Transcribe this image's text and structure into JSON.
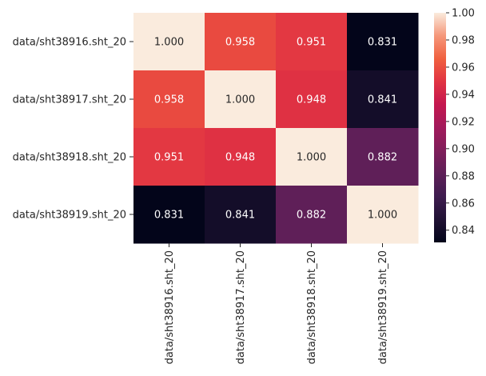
{
  "chart_data": {
    "type": "heatmap",
    "title": "",
    "xlabel": "",
    "ylabel": "",
    "row_labels": [
      "data/sht38916.sht_20",
      "data/sht38917.sht_20",
      "data/sht38918.sht_20",
      "data/sht38919.sht_20"
    ],
    "col_labels": [
      "data/sht38916.sht_20",
      "data/sht38917.sht_20",
      "data/sht38918.sht_20",
      "data/sht38919.sht_20"
    ],
    "values": [
      [
        1.0,
        0.958,
        0.951,
        0.831
      ],
      [
        0.958,
        1.0,
        0.948,
        0.841
      ],
      [
        0.951,
        0.948,
        1.0,
        0.882
      ],
      [
        0.831,
        0.841,
        0.882,
        1.0
      ]
    ],
    "annotation_format": "3 decimals",
    "colorbar": {
      "colormap": "rocket",
      "vmin": 0.831,
      "vmax": 1.0,
      "ticks": [
        0.84,
        0.86,
        0.88,
        0.9,
        0.92,
        0.94,
        0.96,
        0.98,
        1.0
      ],
      "tick_labels": [
        "0.84",
        "0.86",
        "0.88",
        "0.90",
        "0.92",
        "0.94",
        "0.96",
        "0.98",
        "1.00"
      ]
    }
  }
}
